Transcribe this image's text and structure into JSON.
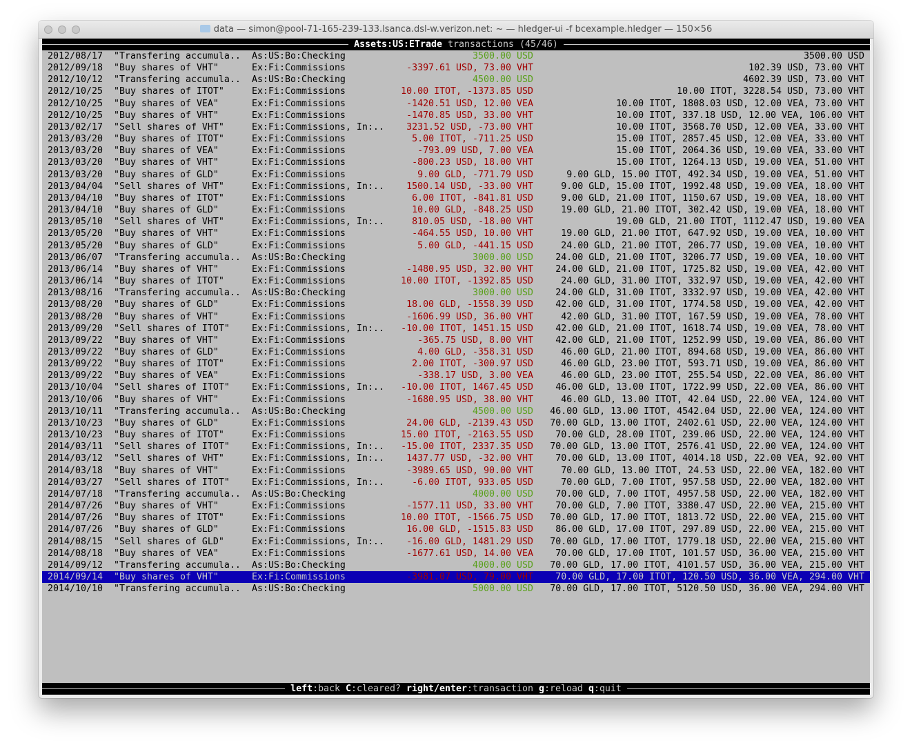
{
  "window": {
    "title": "data — simon@pool-71-165-239-133.lsanca.dsl-w.verizon.net: ~ — hledger-ui -f bcexample.hledger — 150×56",
    "title_icon": "folder-icon"
  },
  "header": {
    "account": "Assets:US:ETrade",
    "suffix": " transactions (45/46)"
  },
  "colors": {
    "negative": "#a00000",
    "positive": "#5aa01c",
    "selected_bg": "#0c00b4",
    "background": "#bfbfbf"
  },
  "selected_index": 44,
  "rows": [
    {
      "date": "2012/08/17",
      "desc": "\"Transfering accumula..",
      "account": "As:US:Bo:Checking",
      "amount": "3500.00 USD",
      "amount_color": "#5aa01c",
      "balance": "3500.00 USD"
    },
    {
      "date": "2012/09/18",
      "desc": "\"Buy shares of VHT\"",
      "account": "Ex:Fi:Commissions",
      "amount": "-3397.61 USD, 73.00 VHT",
      "amount_color": "#a00000",
      "balance": "102.39 USD, 73.00 VHT"
    },
    {
      "date": "2012/10/12",
      "desc": "\"Transfering accumula..",
      "account": "As:US:Bo:Checking",
      "amount": "4500.00 USD",
      "amount_color": "#5aa01c",
      "balance": "4602.39 USD, 73.00 VHT"
    },
    {
      "date": "2012/10/25",
      "desc": "\"Buy shares of ITOT\"",
      "account": "Ex:Fi:Commissions",
      "amount": "10.00 ITOT, -1373.85 USD",
      "amount_color": "#a00000",
      "balance": "10.00 ITOT, 3228.54 USD, 73.00 VHT"
    },
    {
      "date": "2012/10/25",
      "desc": "\"Buy shares of VEA\"",
      "account": "Ex:Fi:Commissions",
      "amount": "-1420.51 USD, 12.00 VEA",
      "amount_color": "#a00000",
      "balance": "10.00 ITOT, 1808.03 USD, 12.00 VEA, 73.00 VHT"
    },
    {
      "date": "2012/10/25",
      "desc": "\"Buy shares of VHT\"",
      "account": "Ex:Fi:Commissions",
      "amount": "-1470.85 USD, 33.00 VHT",
      "amount_color": "#a00000",
      "balance": "10.00 ITOT, 337.18 USD, 12.00 VEA, 106.00 VHT"
    },
    {
      "date": "2013/02/17",
      "desc": "\"Sell shares of VHT\"",
      "account": "Ex:Fi:Commissions, In:..",
      "amount": "3231.52 USD, -73.00 VHT",
      "amount_color": "#a00000",
      "balance": "10.00 ITOT, 3568.70 USD, 12.00 VEA, 33.00 VHT"
    },
    {
      "date": "2013/03/20",
      "desc": "\"Buy shares of ITOT\"",
      "account": "Ex:Fi:Commissions",
      "amount": "5.00 ITOT, -711.25 USD",
      "amount_color": "#a00000",
      "balance": "15.00 ITOT, 2857.45 USD, 12.00 VEA, 33.00 VHT"
    },
    {
      "date": "2013/03/20",
      "desc": "\"Buy shares of VEA\"",
      "account": "Ex:Fi:Commissions",
      "amount": "-793.09 USD, 7.00 VEA",
      "amount_color": "#a00000",
      "balance": "15.00 ITOT, 2064.36 USD, 19.00 VEA, 33.00 VHT"
    },
    {
      "date": "2013/03/20",
      "desc": "\"Buy shares of VHT\"",
      "account": "Ex:Fi:Commissions",
      "amount": "-800.23 USD, 18.00 VHT",
      "amount_color": "#a00000",
      "balance": "15.00 ITOT, 1264.13 USD, 19.00 VEA, 51.00 VHT"
    },
    {
      "date": "2013/03/20",
      "desc": "\"Buy shares of GLD\"",
      "account": "Ex:Fi:Commissions",
      "amount": "9.00 GLD, -771.79 USD",
      "amount_color": "#a00000",
      "balance": "9.00 GLD, 15.00 ITOT, 492.34 USD, 19.00 VEA, 51.00 VHT"
    },
    {
      "date": "2013/04/04",
      "desc": "\"Sell shares of VHT\"",
      "account": "Ex:Fi:Commissions, In:..",
      "amount": "1500.14 USD, -33.00 VHT",
      "amount_color": "#a00000",
      "balance": "9.00 GLD, 15.00 ITOT, 1992.48 USD, 19.00 VEA, 18.00 VHT"
    },
    {
      "date": "2013/04/10",
      "desc": "\"Buy shares of ITOT\"",
      "account": "Ex:Fi:Commissions",
      "amount": "6.00 ITOT, -841.81 USD",
      "amount_color": "#a00000",
      "balance": "9.00 GLD, 21.00 ITOT, 1150.67 USD, 19.00 VEA, 18.00 VHT"
    },
    {
      "date": "2013/04/10",
      "desc": "\"Buy shares of GLD\"",
      "account": "Ex:Fi:Commissions",
      "amount": "10.00 GLD, -848.25 USD",
      "amount_color": "#a00000",
      "balance": "19.00 GLD, 21.00 ITOT, 302.42 USD, 19.00 VEA, 18.00 VHT"
    },
    {
      "date": "2013/05/10",
      "desc": "\"Sell shares of VHT\"",
      "account": "Ex:Fi:Commissions, In:..",
      "amount": "810.05 USD, -18.00 VHT",
      "amount_color": "#a00000",
      "balance": "19.00 GLD, 21.00 ITOT, 1112.47 USD, 19.00 VEA"
    },
    {
      "date": "2013/05/20",
      "desc": "\"Buy shares of VHT\"",
      "account": "Ex:Fi:Commissions",
      "amount": "-464.55 USD, 10.00 VHT",
      "amount_color": "#a00000",
      "balance": "19.00 GLD, 21.00 ITOT, 647.92 USD, 19.00 VEA, 10.00 VHT"
    },
    {
      "date": "2013/05/20",
      "desc": "\"Buy shares of GLD\"",
      "account": "Ex:Fi:Commissions",
      "amount": "5.00 GLD, -441.15 USD",
      "amount_color": "#a00000",
      "balance": "24.00 GLD, 21.00 ITOT, 206.77 USD, 19.00 VEA, 10.00 VHT"
    },
    {
      "date": "2013/06/07",
      "desc": "\"Transfering accumula..",
      "account": "As:US:Bo:Checking",
      "amount": "3000.00 USD",
      "amount_color": "#5aa01c",
      "balance": "24.00 GLD, 21.00 ITOT, 3206.77 USD, 19.00 VEA, 10.00 VHT"
    },
    {
      "date": "2013/06/14",
      "desc": "\"Buy shares of VHT\"",
      "account": "Ex:Fi:Commissions",
      "amount": "-1480.95 USD, 32.00 VHT",
      "amount_color": "#a00000",
      "balance": "24.00 GLD, 21.00 ITOT, 1725.82 USD, 19.00 VEA, 42.00 VHT"
    },
    {
      "date": "2013/06/14",
      "desc": "\"Buy shares of ITOT\"",
      "account": "Ex:Fi:Commissions",
      "amount": "10.00 ITOT, -1392.85 USD",
      "amount_color": "#a00000",
      "balance": "24.00 GLD, 31.00 ITOT, 332.97 USD, 19.00 VEA, 42.00 VHT"
    },
    {
      "date": "2013/08/16",
      "desc": "\"Transfering accumula..",
      "account": "As:US:Bo:Checking",
      "amount": "3000.00 USD",
      "amount_color": "#5aa01c",
      "balance": "24.00 GLD, 31.00 ITOT, 3332.97 USD, 19.00 VEA, 42.00 VHT"
    },
    {
      "date": "2013/08/20",
      "desc": "\"Buy shares of GLD\"",
      "account": "Ex:Fi:Commissions",
      "amount": "18.00 GLD, -1558.39 USD",
      "amount_color": "#a00000",
      "balance": "42.00 GLD, 31.00 ITOT, 1774.58 USD, 19.00 VEA, 42.00 VHT"
    },
    {
      "date": "2013/08/20",
      "desc": "\"Buy shares of VHT\"",
      "account": "Ex:Fi:Commissions",
      "amount": "-1606.99 USD, 36.00 VHT",
      "amount_color": "#a00000",
      "balance": "42.00 GLD, 31.00 ITOT, 167.59 USD, 19.00 VEA, 78.00 VHT"
    },
    {
      "date": "2013/09/20",
      "desc": "\"Sell shares of ITOT\"",
      "account": "Ex:Fi:Commissions, In:..",
      "amount": "-10.00 ITOT, 1451.15 USD",
      "amount_color": "#a00000",
      "balance": "42.00 GLD, 21.00 ITOT, 1618.74 USD, 19.00 VEA, 78.00 VHT"
    },
    {
      "date": "2013/09/22",
      "desc": "\"Buy shares of VHT\"",
      "account": "Ex:Fi:Commissions",
      "amount": "-365.75 USD, 8.00 VHT",
      "amount_color": "#a00000",
      "balance": "42.00 GLD, 21.00 ITOT, 1252.99 USD, 19.00 VEA, 86.00 VHT"
    },
    {
      "date": "2013/09/22",
      "desc": "\"Buy shares of GLD\"",
      "account": "Ex:Fi:Commissions",
      "amount": "4.00 GLD, -358.31 USD",
      "amount_color": "#a00000",
      "balance": "46.00 GLD, 21.00 ITOT, 894.68 USD, 19.00 VEA, 86.00 VHT"
    },
    {
      "date": "2013/09/22",
      "desc": "\"Buy shares of ITOT\"",
      "account": "Ex:Fi:Commissions",
      "amount": "2.00 ITOT, -300.97 USD",
      "amount_color": "#a00000",
      "balance": "46.00 GLD, 23.00 ITOT, 593.71 USD, 19.00 VEA, 86.00 VHT"
    },
    {
      "date": "2013/09/22",
      "desc": "\"Buy shares of VEA\"",
      "account": "Ex:Fi:Commissions",
      "amount": "-338.17 USD, 3.00 VEA",
      "amount_color": "#a00000",
      "balance": "46.00 GLD, 23.00 ITOT, 255.54 USD, 22.00 VEA, 86.00 VHT"
    },
    {
      "date": "2013/10/04",
      "desc": "\"Sell shares of ITOT\"",
      "account": "Ex:Fi:Commissions, In:..",
      "amount": "-10.00 ITOT, 1467.45 USD",
      "amount_color": "#a00000",
      "balance": "46.00 GLD, 13.00 ITOT, 1722.99 USD, 22.00 VEA, 86.00 VHT"
    },
    {
      "date": "2013/10/06",
      "desc": "\"Buy shares of VHT\"",
      "account": "Ex:Fi:Commissions",
      "amount": "-1680.95 USD, 38.00 VHT",
      "amount_color": "#a00000",
      "balance": "46.00 GLD, 13.00 ITOT, 42.04 USD, 22.00 VEA, 124.00 VHT"
    },
    {
      "date": "2013/10/11",
      "desc": "\"Transfering accumula..",
      "account": "As:US:Bo:Checking",
      "amount": "4500.00 USD",
      "amount_color": "#5aa01c",
      "balance": "46.00 GLD, 13.00 ITOT, 4542.04 USD, 22.00 VEA, 124.00 VHT"
    },
    {
      "date": "2013/10/23",
      "desc": "\"Buy shares of GLD\"",
      "account": "Ex:Fi:Commissions",
      "amount": "24.00 GLD, -2139.43 USD",
      "amount_color": "#a00000",
      "balance": "70.00 GLD, 13.00 ITOT, 2402.61 USD, 22.00 VEA, 124.00 VHT"
    },
    {
      "date": "2013/10/23",
      "desc": "\"Buy shares of ITOT\"",
      "account": "Ex:Fi:Commissions",
      "amount": "15.00 ITOT, -2163.55 USD",
      "amount_color": "#a00000",
      "balance": "70.00 GLD, 28.00 ITOT, 239.06 USD, 22.00 VEA, 124.00 VHT"
    },
    {
      "date": "2014/03/11",
      "desc": "\"Sell shares of ITOT\"",
      "account": "Ex:Fi:Commissions, In:..",
      "amount": "-15.00 ITOT, 2337.35 USD",
      "amount_color": "#a00000",
      "balance": "70.00 GLD, 13.00 ITOT, 2576.41 USD, 22.00 VEA, 124.00 VHT"
    },
    {
      "date": "2014/03/12",
      "desc": "\"Sell shares of VHT\"",
      "account": "Ex:Fi:Commissions, In:..",
      "amount": "1437.77 USD, -32.00 VHT",
      "amount_color": "#a00000",
      "balance": "70.00 GLD, 13.00 ITOT, 4014.18 USD, 22.00 VEA, 92.00 VHT"
    },
    {
      "date": "2014/03/18",
      "desc": "\"Buy shares of VHT\"",
      "account": "Ex:Fi:Commissions",
      "amount": "-3989.65 USD, 90.00 VHT",
      "amount_color": "#a00000",
      "balance": "70.00 GLD, 13.00 ITOT, 24.53 USD, 22.00 VEA, 182.00 VHT"
    },
    {
      "date": "2014/03/27",
      "desc": "\"Sell shares of ITOT\"",
      "account": "Ex:Fi:Commissions, In:..",
      "amount": "-6.00 ITOT, 933.05 USD",
      "amount_color": "#a00000",
      "balance": "70.00 GLD, 7.00 ITOT, 957.58 USD, 22.00 VEA, 182.00 VHT"
    },
    {
      "date": "2014/07/18",
      "desc": "\"Transfering accumula..",
      "account": "As:US:Bo:Checking",
      "amount": "4000.00 USD",
      "amount_color": "#5aa01c",
      "balance": "70.00 GLD, 7.00 ITOT, 4957.58 USD, 22.00 VEA, 182.00 VHT"
    },
    {
      "date": "2014/07/26",
      "desc": "\"Buy shares of VHT\"",
      "account": "Ex:Fi:Commissions",
      "amount": "-1577.11 USD, 33.00 VHT",
      "amount_color": "#a00000",
      "balance": "70.00 GLD, 7.00 ITOT, 3380.47 USD, 22.00 VEA, 215.00 VHT"
    },
    {
      "date": "2014/07/26",
      "desc": "\"Buy shares of ITOT\"",
      "account": "Ex:Fi:Commissions",
      "amount": "10.00 ITOT, -1566.75 USD",
      "amount_color": "#a00000",
      "balance": "70.00 GLD, 17.00 ITOT, 1813.72 USD, 22.00 VEA, 215.00 VHT"
    },
    {
      "date": "2014/07/26",
      "desc": "\"Buy shares of GLD\"",
      "account": "Ex:Fi:Commissions",
      "amount": "16.00 GLD, -1515.83 USD",
      "amount_color": "#a00000",
      "balance": "86.00 GLD, 17.00 ITOT, 297.89 USD, 22.00 VEA, 215.00 VHT"
    },
    {
      "date": "2014/08/15",
      "desc": "\"Sell shares of GLD\"",
      "account": "Ex:Fi:Commissions, In:..",
      "amount": "-16.00 GLD, 1481.29 USD",
      "amount_color": "#a00000",
      "balance": "70.00 GLD, 17.00 ITOT, 1779.18 USD, 22.00 VEA, 215.00 VHT"
    },
    {
      "date": "2014/08/18",
      "desc": "\"Buy shares of VEA\"",
      "account": "Ex:Fi:Commissions",
      "amount": "-1677.61 USD, 14.00 VEA",
      "amount_color": "#a00000",
      "balance": "70.00 GLD, 17.00 ITOT, 101.57 USD, 36.00 VEA, 215.00 VHT"
    },
    {
      "date": "2014/09/12",
      "desc": "\"Transfering accumula..",
      "account": "As:US:Bo:Checking",
      "amount": "4000.00 USD",
      "amount_color": "#5aa01c",
      "balance": "70.00 GLD, 17.00 ITOT, 4101.57 USD, 36.00 VEA, 215.00 VHT"
    },
    {
      "date": "2014/09/14",
      "desc": "\"Buy shares of VHT\"",
      "account": "Ex:Fi:Commissions",
      "amount": "-3981.07 USD, 79.00 VHT",
      "amount_color": "#a00000",
      "balance": "70.00 GLD, 17.00 ITOT, 120.50 USD, 36.00 VEA, 294.00 VHT"
    },
    {
      "date": "2014/10/10",
      "desc": "\"Transfering accumula..",
      "account": "As:US:Bo:Checking",
      "amount": "5000.00 USD",
      "amount_color": "#5aa01c",
      "balance": "70.00 GLD, 17.00 ITOT, 5120.50 USD, 36.00 VEA, 294.00 VHT"
    }
  ],
  "footer": {
    "keys": [
      {
        "key": "left",
        "action": "back"
      },
      {
        "key": "C",
        "action": "cleared?"
      },
      {
        "key": "right/enter",
        "action": "transaction"
      },
      {
        "key": "g",
        "action": "reload"
      },
      {
        "key": "q",
        "action": "quit"
      }
    ]
  }
}
